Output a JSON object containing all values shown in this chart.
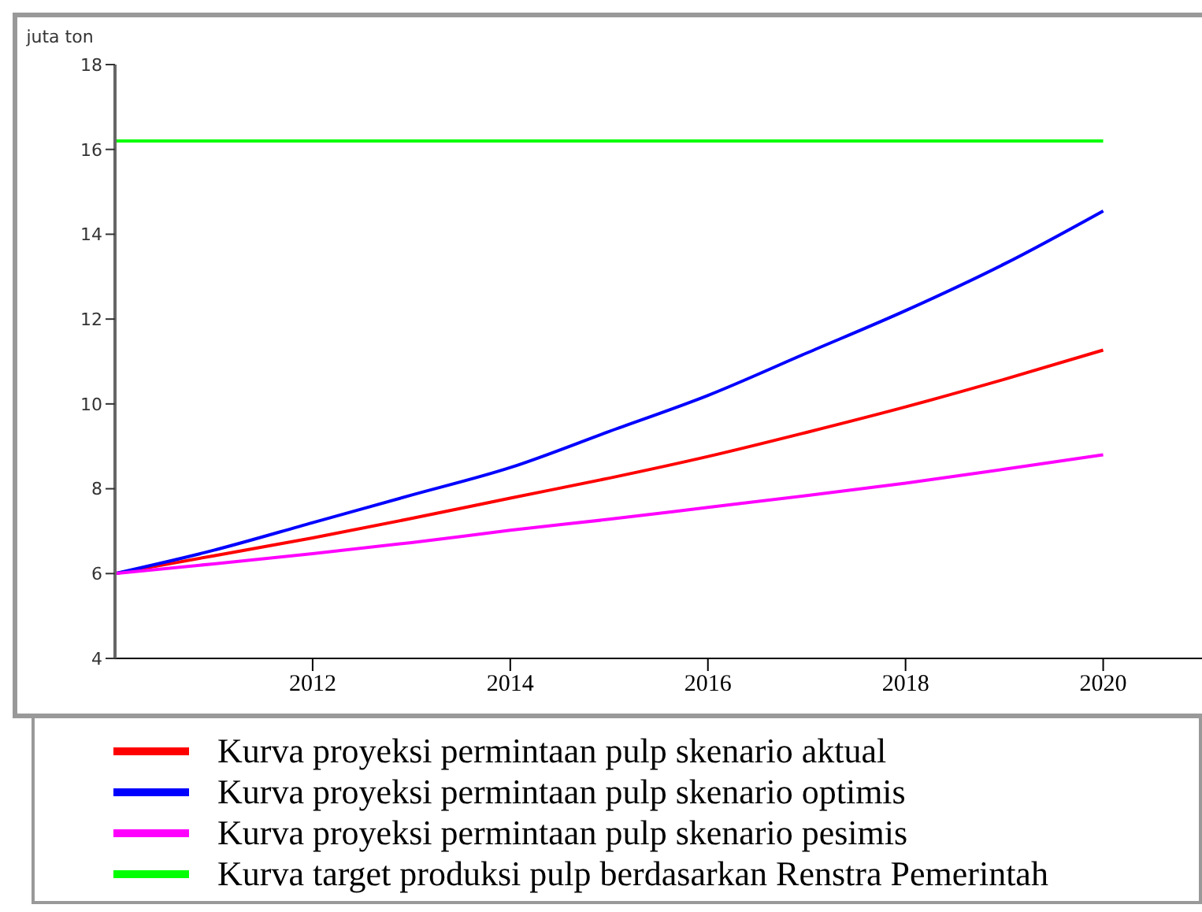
{
  "chart_data": {
    "type": "line",
    "ylabel": "juta ton",
    "x": [
      2010,
      2011,
      2012,
      2013,
      2014,
      2015,
      2016,
      2017,
      2018,
      2019,
      2020
    ],
    "xlim": [
      2010,
      2021
    ],
    "xticks": [
      2012,
      2014,
      2016,
      2018,
      2020
    ],
    "ylim": [
      4,
      18
    ],
    "yticks": [
      4,
      6,
      8,
      10,
      12,
      14,
      16,
      18
    ],
    "grid": false,
    "marker": "none",
    "line_style": "solid",
    "legend": "bottom",
    "series": [
      {
        "name": "Kurva proyeksi permintaan pulp skenario aktual",
        "color": "#ff0000",
        "values": [
          6.0,
          6.42,
          6.84,
          7.3,
          7.78,
          8.25,
          8.76,
          9.33,
          9.93,
          10.58,
          11.27
        ]
      },
      {
        "name": "Kurva proyeksi permintaan pulp skenario optimis",
        "color": "#0000ff",
        "values": [
          6.0,
          6.55,
          7.2,
          7.85,
          8.5,
          9.35,
          10.2,
          11.2,
          12.2,
          13.3,
          14.55
        ]
      },
      {
        "name": "Kurva proyeksi permintaan pulp skenario pesimis",
        "color": "#ff00ff",
        "values": [
          6.0,
          6.23,
          6.47,
          6.73,
          7.02,
          7.28,
          7.56,
          7.84,
          8.13,
          8.46,
          8.8
        ]
      },
      {
        "name": "Kurva target produksi pulp berdasarkan Renstra Pemerintah",
        "color": "#00ff00",
        "values": [
          16.2,
          16.2,
          16.2,
          16.2,
          16.2,
          16.2,
          16.2,
          16.2,
          16.2,
          16.2,
          16.2
        ]
      }
    ]
  }
}
